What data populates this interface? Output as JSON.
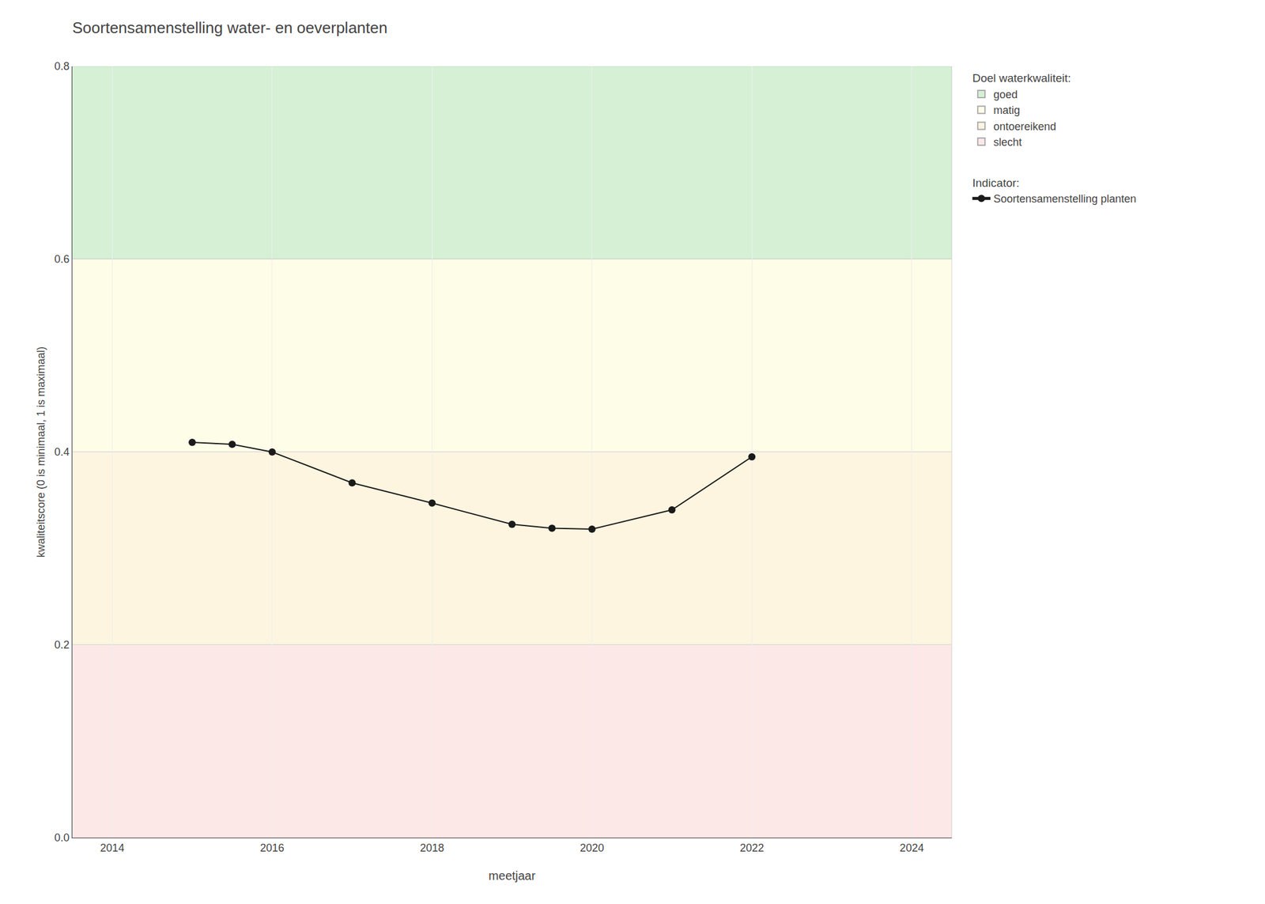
{
  "chart_data": {
    "type": "line",
    "title": "Soortensamenstelling water- en oeverplanten",
    "xlabel": "meetjaar",
    "ylabel": "kwaliteitscore (0 is minimaal, 1 is maximaal)",
    "x": [
      2015,
      2015.5,
      2016,
      2017,
      2018,
      2019,
      2019.5,
      2020,
      2021,
      2022
    ],
    "series": [
      {
        "name": "Soortensamenstelling planten",
        "color": "#1a1a1a",
        "marker": "circle",
        "line_style": "solid",
        "values": [
          0.41,
          0.408,
          0.4,
          0.368,
          0.347,
          0.325,
          0.321,
          0.32,
          0.34,
          0.395
        ]
      }
    ],
    "series_title": "Indicator:",
    "bands": {
      "title": "Doel waterkwaliteit:",
      "items": [
        {
          "name": "goed",
          "color": "#d6f0d6",
          "range": [
            0.6,
            0.8
          ]
        },
        {
          "name": "matig",
          "color": "#fdfde8",
          "range": [
            0.4,
            0.6
          ]
        },
        {
          "name": "ontoereikend",
          "color": "#fdf5e0",
          "range": [
            0.2,
            0.4
          ]
        },
        {
          "name": "slecht",
          "color": "#fde8e8",
          "range": [
            0.0,
            0.2
          ]
        }
      ]
    },
    "xlim": [
      2013.5,
      2024.5
    ],
    "ylim": [
      0.0,
      0.8
    ],
    "xticks": [
      2014,
      2016,
      2018,
      2020,
      2022,
      2024
    ],
    "yticks": [
      {
        "value": 0.0,
        "label": "0.0"
      },
      0.2,
      0.4,
      0.6,
      0.8
    ],
    "grid": true,
    "legend": "right"
  }
}
